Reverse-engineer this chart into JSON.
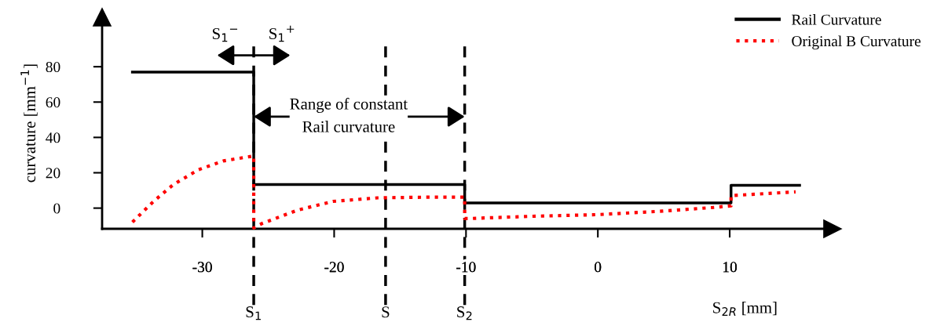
{
  "chart_data": {
    "type": "line",
    "xlabel": "S$_{2R}$ [mm]",
    "ylabel": "curvature [mm$^{−1}$]",
    "xlim": [
      -37.6,
      17.8
    ],
    "ylim": [
      -11.7,
      108
    ],
    "xticks": [
      -30,
      -20,
      -10,
      0,
      10
    ],
    "yticks": [
      0,
      20,
      40,
      60,
      80
    ],
    "grid": false,
    "legend": "top right",
    "series": [
      {
        "name": "Rail Curvature",
        "color": "#000000",
        "line_style": "solid",
        "x": [
          -35.3,
          -26.1,
          -26.1,
          -10.1,
          -10.1,
          10.1,
          10.1,
          15.3
        ],
        "values": [
          77,
          77,
          13.3,
          13.3,
          2.9,
          2.9,
          12.9,
          12.9
        ]
      },
      {
        "name": "Original B Curvature",
        "color": "#ff0000",
        "line_style": "dotted",
        "x": [
          -35.3,
          -33.7,
          -32.2,
          -30.3,
          -28.4,
          -26.7,
          -26.1,
          -26.1,
          -25.5,
          -22.8,
          -20.1,
          -16.7,
          -12.9,
          -10.1,
          -10.1,
          -9.8,
          -4.9,
          0,
          4.9,
          8.8,
          10.1,
          10.1,
          15.0
        ],
        "values": [
          -7.9,
          3.8,
          13.3,
          21.7,
          26.7,
          28.8,
          29.5,
          -11.2,
          -8.8,
          -1.2,
          3.8,
          5.8,
          6.2,
          6.2,
          -5.9,
          -5.9,
          -4.6,
          -3.7,
          -1.7,
          0.4,
          1.3,
          7.1,
          9.2
        ]
      }
    ],
    "ref_lines": [
      {
        "axis": "x",
        "value": -26.1,
        "label": "S$_{1}$",
        "color": "#000000",
        "line_style": "dashed"
      },
      {
        "axis": "x",
        "value": -16.1,
        "label": "S",
        "color": "#000000",
        "line_style": "dashed"
      },
      {
        "axis": "x",
        "value": -10.1,
        "label": "S$_{2}$",
        "color": "#000000",
        "line_style": "dashed"
      }
    ],
    "annotations": [
      "S$_{1}$$^{−}$",
      "S$_{1}$$^{+}$",
      "Range of constant\nRail curvature"
    ]
  }
}
